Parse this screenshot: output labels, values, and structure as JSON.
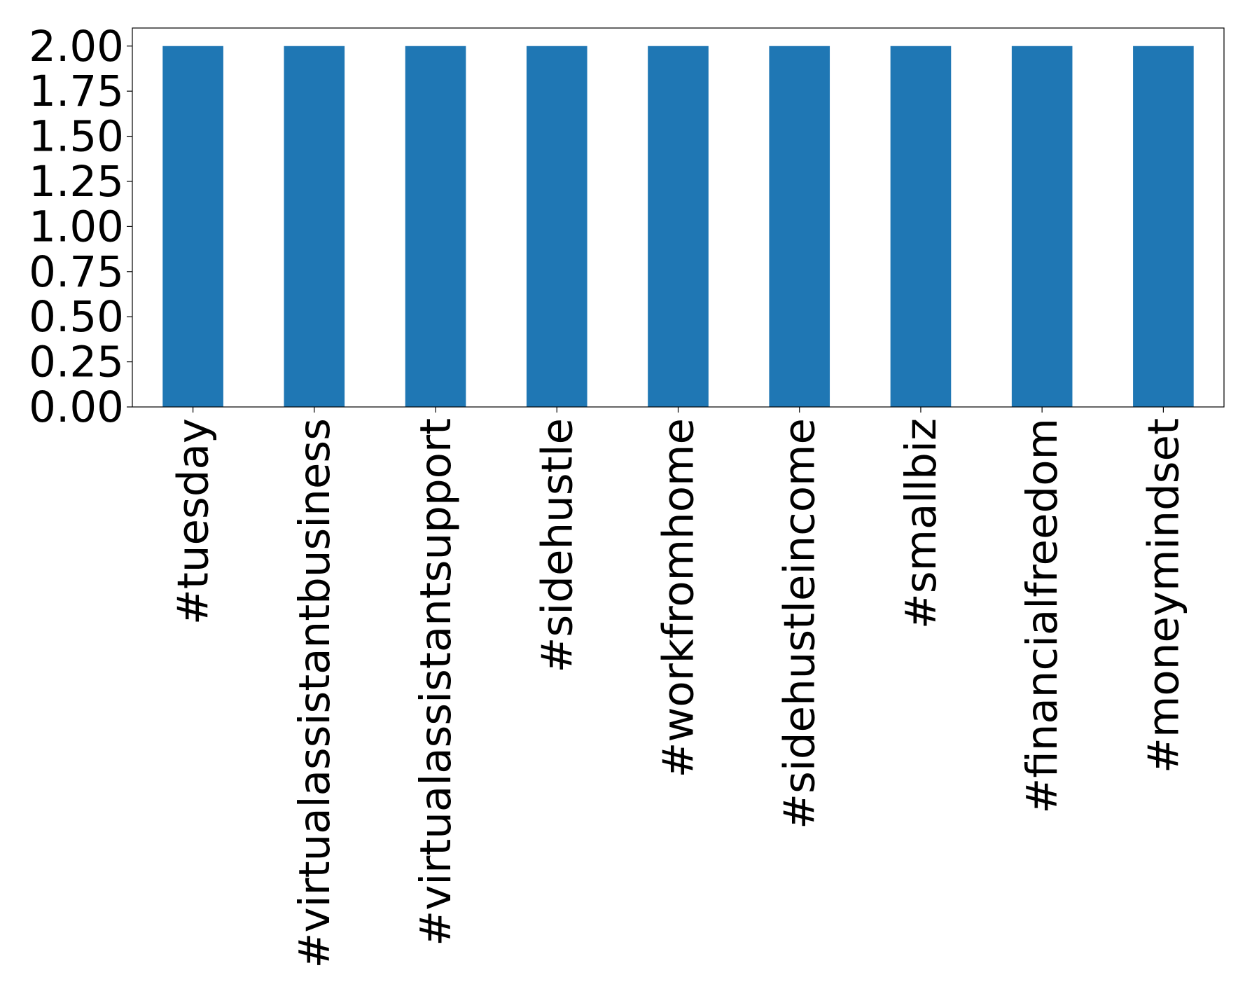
{
  "chart_data": {
    "type": "bar",
    "categories": [
      "#tuesday",
      "#virtualassistantbusiness",
      "#virtualassistantsupport",
      "#sidehustle",
      "#workfromhome",
      "#sidehustleincome",
      "#smallbiz",
      "#financialfreedom",
      "#moneymindset"
    ],
    "values": [
      2,
      2,
      2,
      2,
      2,
      2,
      2,
      2,
      2
    ],
    "color": "#1f77b4",
    "ylim": [
      0,
      2.1
    ],
    "yticks": [
      {
        "value": 0,
        "label": "0.00"
      },
      {
        "value": 0.25,
        "label": "0.25"
      },
      {
        "value": 0.5,
        "label": "0.50"
      },
      {
        "value": 0.75,
        "label": "0.75"
      },
      {
        "value": 1,
        "label": "1.00"
      },
      {
        "value": 1.25,
        "label": "1.25"
      },
      {
        "value": 1.5,
        "label": "1.50"
      },
      {
        "value": 1.75,
        "label": "1.75"
      },
      {
        "value": 2,
        "label": "2.00"
      }
    ],
    "grid": false
  }
}
